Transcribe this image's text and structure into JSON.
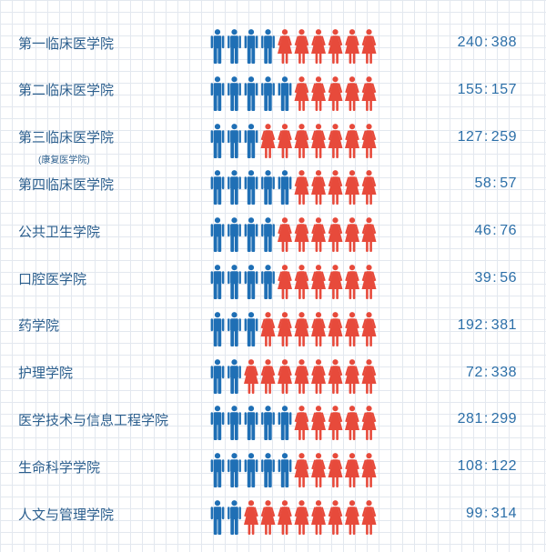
{
  "chart_data": {
    "type": "pictograph",
    "icons_per_row": 10,
    "colors": {
      "male": "#1f6fb5",
      "female": "#e74a3b",
      "text": "#2c5f8e"
    },
    "categories": [
      {
        "name": "第一临床医学院",
        "sub": "",
        "male": 240,
        "female": 388
      },
      {
        "name": "第二临床医学院",
        "sub": "",
        "male": 155,
        "female": 157
      },
      {
        "name": "第三临床医学院",
        "sub": "(康复医学院)",
        "male": 127,
        "female": 259
      },
      {
        "name": "第四临床医学院",
        "sub": "",
        "male": 58,
        "female": 57
      },
      {
        "name": "公共卫生学院",
        "sub": "",
        "male": 46,
        "female": 76
      },
      {
        "name": "口腔医学院",
        "sub": "",
        "male": 39,
        "female": 56
      },
      {
        "name": "药学院",
        "sub": "",
        "male": 192,
        "female": 381
      },
      {
        "name": "护理学院",
        "sub": "",
        "male": 72,
        "female": 338
      },
      {
        "name": "医学技术与信息工程学院",
        "sub": "",
        "male": 281,
        "female": 299
      },
      {
        "name": "生命科学学院",
        "sub": "",
        "male": 108,
        "female": 122
      },
      {
        "name": "人文与管理学院",
        "sub": "",
        "male": 99,
        "female": 314
      }
    ]
  }
}
